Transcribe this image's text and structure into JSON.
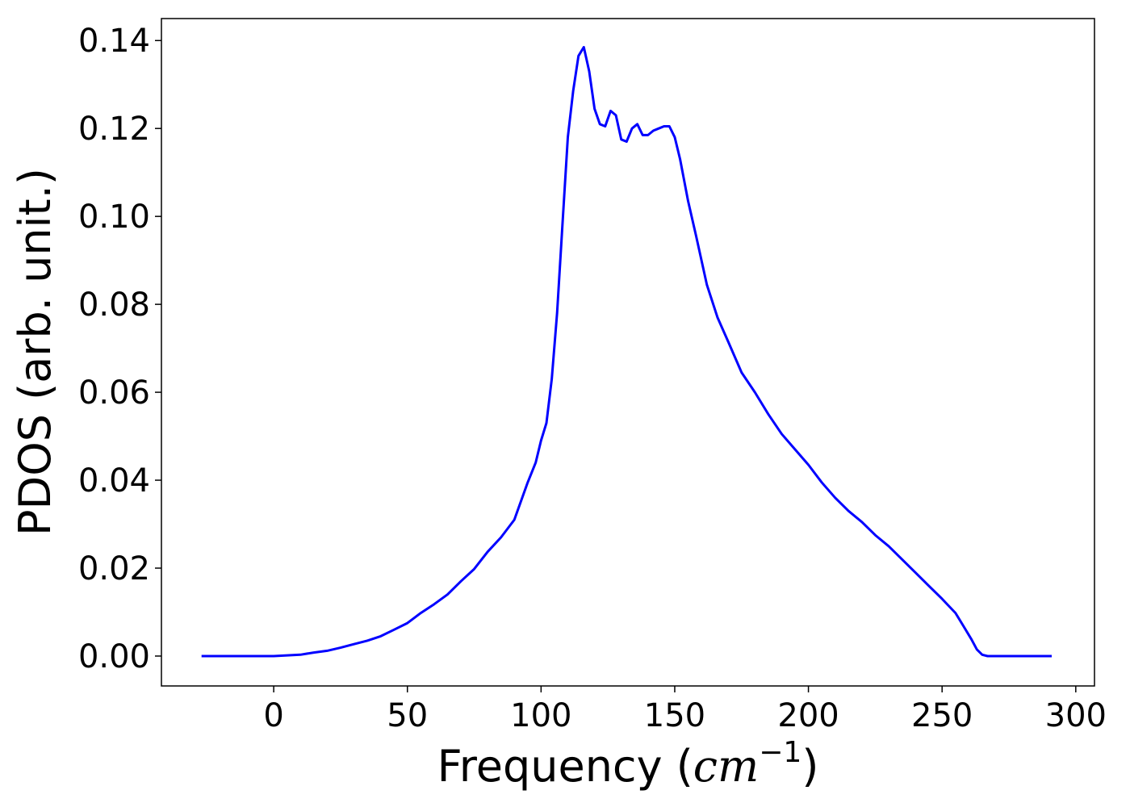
{
  "chart_data": {
    "type": "line",
    "title": "",
    "xlabel": "Frequency (",
    "xlabel_math": "cm",
    "xlabel_sup": "−1",
    "xlabel_close": ")",
    "ylabel": "PDOS (arb. unit.)",
    "xlim": [
      -42,
      307
    ],
    "ylim": [
      -0.0068,
      0.145
    ],
    "grid": false,
    "legend": "none",
    "line_color": "#0000ff",
    "x_ticks": [
      0,
      50,
      100,
      150,
      200,
      250,
      300
    ],
    "x_tick_labels": [
      "0",
      "50",
      "100",
      "150",
      "200",
      "250",
      "300"
    ],
    "y_ticks": [
      0.0,
      0.02,
      0.04,
      0.06,
      0.08,
      0.1,
      0.12,
      0.14
    ],
    "y_tick_labels": [
      "0.00",
      "0.02",
      "0.04",
      "0.06",
      "0.08",
      "0.10",
      "0.12",
      "0.14"
    ],
    "series": [
      {
        "x": [
          -27,
          0,
          10,
          15,
          20,
          25,
          30,
          35,
          40,
          45,
          50,
          55,
          60,
          65,
          70,
          75,
          80,
          85,
          90,
          95,
          98,
          100,
          102,
          104,
          106,
          108,
          110,
          112,
          114,
          116,
          118,
          120,
          122,
          124,
          126,
          128,
          130,
          132,
          134,
          136,
          138,
          140,
          142,
          144,
          146,
          148,
          150,
          152,
          155,
          158,
          162,
          166,
          170,
          175,
          180,
          185,
          190,
          195,
          200,
          205,
          210,
          215,
          220,
          225,
          230,
          235,
          240,
          245,
          250,
          255,
          258,
          261,
          263,
          265,
          267,
          270,
          275,
          291
        ],
        "y": [
          0.0,
          0.0,
          0.0003,
          0.0008,
          0.0012,
          0.0019,
          0.0027,
          0.0035,
          0.0045,
          0.006,
          0.0075,
          0.0098,
          0.0118,
          0.014,
          0.017,
          0.0198,
          0.0237,
          0.027,
          0.031,
          0.0395,
          0.044,
          0.049,
          0.053,
          0.063,
          0.078,
          0.098,
          0.118,
          0.1285,
          0.1365,
          0.1385,
          0.133,
          0.1245,
          0.121,
          0.1205,
          0.124,
          0.123,
          0.1175,
          0.117,
          0.12,
          0.121,
          0.1185,
          0.1185,
          0.1195,
          0.12,
          0.1205,
          0.1205,
          0.118,
          0.113,
          0.1035,
          0.0955,
          0.0845,
          0.077,
          0.0715,
          0.0645,
          0.06,
          0.055,
          0.0505,
          0.047,
          0.0435,
          0.0395,
          0.036,
          0.033,
          0.0305,
          0.0275,
          0.025,
          0.022,
          0.019,
          0.016,
          0.013,
          0.0098,
          0.0068,
          0.0038,
          0.0015,
          0.0003,
          0.0,
          0.0,
          0.0,
          0.0
        ]
      }
    ]
  }
}
